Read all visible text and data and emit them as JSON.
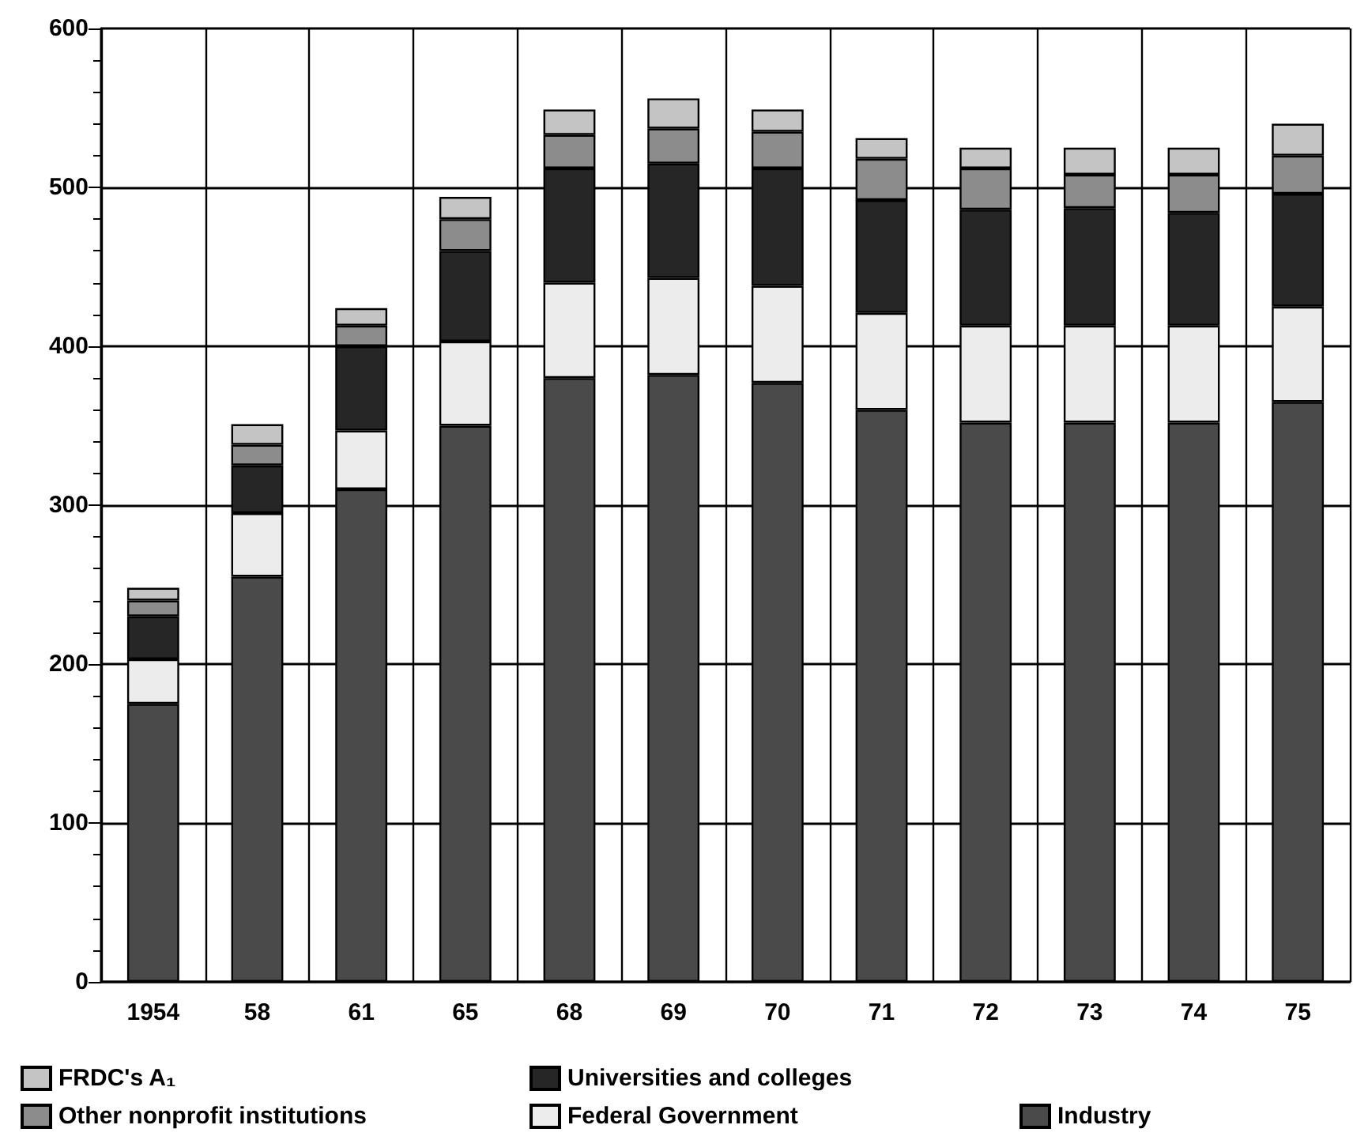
{
  "chart_data": {
    "type": "bar",
    "stacked": true,
    "categories": [
      "1954",
      "58",
      "61",
      "65",
      "68",
      "69",
      "70",
      "71",
      "72",
      "73",
      "74",
      "75"
    ],
    "series": [
      {
        "name": "Industry",
        "color": "#4a4a4a",
        "values": [
          175,
          255,
          310,
          350,
          380,
          382,
          377,
          360,
          352,
          352,
          352,
          365
        ]
      },
      {
        "name": "Federal Government",
        "color": "#ececec",
        "values": [
          28,
          40,
          37,
          53,
          60,
          61,
          61,
          61,
          61,
          61,
          61,
          60
        ]
      },
      {
        "name": "Universities and colleges",
        "color": "#262626",
        "values": [
          27,
          30,
          53,
          57,
          72,
          72,
          74,
          71,
          73,
          74,
          71,
          71
        ]
      },
      {
        "name": "Other nonprofit institutions",
        "color": "#8c8c8c",
        "values": [
          10,
          13,
          13,
          20,
          21,
          22,
          23,
          26,
          26,
          21,
          24,
          24
        ]
      },
      {
        "name": "FRDC's A₁",
        "color": "#c4c4c4",
        "values": [
          8,
          13,
          11,
          14,
          16,
          19,
          14,
          13,
          13,
          17,
          17,
          20
        ]
      }
    ],
    "ylim": [
      0,
      600
    ],
    "yticks": [
      0,
      100,
      200,
      300,
      400,
      500,
      600
    ],
    "grid": true,
    "legend": "bottom left"
  }
}
